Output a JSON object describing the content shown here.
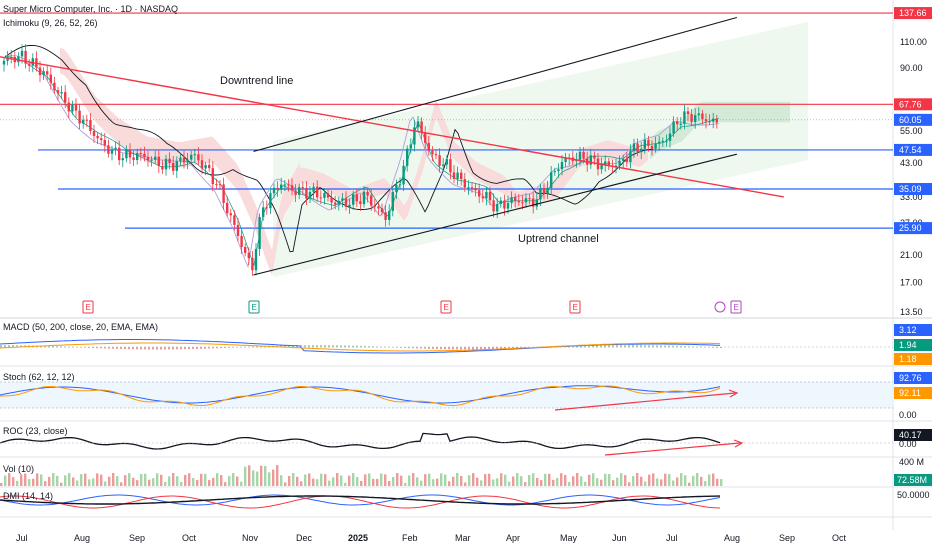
{
  "header": {
    "title": "Super Micro Computer, Inc. · 1D · NASDAQ",
    "indicator": "Ichimoku (9, 26, 52, 26)"
  },
  "price_axis": {
    "ticks": [
      "110.00",
      "90.00",
      "55.00",
      "43.00",
      "33.00",
      "27.00",
      "21.00",
      "17.00",
      "13.50"
    ]
  },
  "price_tags": {
    "r1": "137.66",
    "r2": "67.76",
    "last": "60.05",
    "s1": "47.54",
    "s2": "35.09",
    "s3": "25.90"
  },
  "annotations": {
    "downtrend": "Downtrend line",
    "uptrend": "Uptrend channel"
  },
  "earnings_marker": "E",
  "panes": {
    "macd": {
      "label": "MACD (50, 200, close, 20, EMA, EMA)",
      "v1": "3.12",
      "v2": "1.94",
      "v3": "1.18"
    },
    "stoch": {
      "label": "Stoch (62, 12, 12)",
      "v1": "92.76",
      "v2": "92.11",
      "zero": "0.00"
    },
    "roc": {
      "label": "ROC (23, close)",
      "v1": "40.17",
      "ref": "0.00"
    },
    "vol": {
      "label": "Vol (10)",
      "v1": "72.58M",
      "scale": "400 M"
    },
    "dmi": {
      "label": "DMI (14, 14)",
      "v1": "50.0000"
    }
  },
  "time_axis": [
    "Jul",
    "Aug",
    "Sep",
    "Oct",
    "Nov",
    "Dec",
    "2025",
    "Feb",
    "Mar",
    "Apr",
    "May",
    "Jun",
    "Jul",
    "Aug",
    "Sep",
    "Oct"
  ],
  "colors": {
    "red": "#f23645",
    "blue": "#2962ff",
    "green": "#089981",
    "orange": "#ff9800",
    "black": "#131722",
    "purple": "#b39ddb",
    "cloud_red": "#f8d7d7",
    "cloud_green": "#cfe9d3",
    "channel_fill": "#e8f5e9",
    "magenta": "#ab47bc"
  },
  "chart_data": {
    "type": "candlestick",
    "title": "Super Micro Computer, Inc. · 1D · NASDAQ",
    "scale": "log",
    "ylim": [
      13.5,
      150
    ],
    "x_range": [
      "2024-07-01",
      "2025-10-31"
    ],
    "horizontal_levels": [
      137.66,
      67.76,
      47.54,
      35.09,
      25.9
    ],
    "last_price": 60.05,
    "price_path": [
      [
        "2024-07-01",
        95
      ],
      [
        "2024-07-15",
        88
      ],
      [
        "2024-08-01",
        62
      ],
      [
        "2024-08-15",
        52
      ],
      [
        "2024-09-01",
        45
      ],
      [
        "2024-09-20",
        43
      ],
      [
        "2024-10-10",
        45
      ],
      [
        "2024-10-25",
        36
      ],
      [
        "2024-11-05",
        26
      ],
      [
        "2024-11-14",
        18.5
      ],
      [
        "2024-11-20",
        29
      ],
      [
        "2024-12-01",
        37
      ],
      [
        "2024-12-15",
        35
      ],
      [
        "2025-01-01",
        31
      ],
      [
        "2025-01-20",
        34
      ],
      [
        "2025-02-01",
        27
      ],
      [
        "2025-02-12",
        42
      ],
      [
        "2025-02-19",
        62
      ],
      [
        "2025-03-01",
        45
      ],
      [
        "2025-03-15",
        38
      ],
      [
        "2025-04-01",
        34
      ],
      [
        "2025-04-08",
        30
      ],
      [
        "2025-05-01",
        33
      ],
      [
        "2025-05-15",
        42
      ],
      [
        "2025-06-01",
        45
      ],
      [
        "2025-06-20",
        42
      ],
      [
        "2025-07-01",
        48
      ],
      [
        "2025-07-15",
        52
      ],
      [
        "2025-07-25",
        60.05
      ]
    ],
    "trendlines": {
      "downtrend": [
        [
          "2024-07-01",
          98
        ],
        [
          "2025-09-10",
          33
        ]
      ],
      "channel_upper": [
        [
          "2024-11-15",
          47
        ],
        [
          "2025-08-28",
          133
        ]
      ],
      "channel_lower": [
        [
          "2024-11-15",
          18
        ],
        [
          "2025-08-28",
          46
        ]
      ]
    },
    "annotations": [
      "Downtrend line",
      "Uptrend channel"
    ],
    "indicators": {
      "macd": {
        "params": "50, 200, close, 20, EMA, EMA",
        "values": [
          3.12,
          1.94,
          1.18
        ]
      },
      "stoch": {
        "params": "62, 12, 12",
        "values": [
          92.76,
          92.11
        ]
      },
      "roc": {
        "params": "23, close",
        "value": 40.17
      },
      "volume": {
        "params": "10",
        "value": "72.58M"
      },
      "dmi": {
        "params": "14, 14",
        "value": 50.0
      }
    }
  }
}
